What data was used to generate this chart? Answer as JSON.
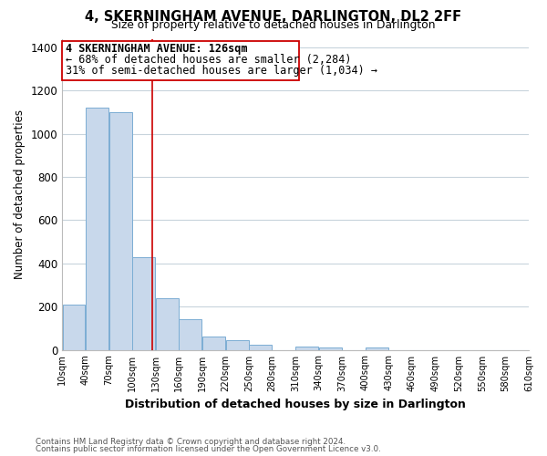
{
  "title": "4, SKERNINGHAM AVENUE, DARLINGTON, DL2 2FF",
  "subtitle": "Size of property relative to detached houses in Darlington",
  "xlabel": "Distribution of detached houses by size in Darlington",
  "ylabel": "Number of detached properties",
  "bar_color": "#c8d8eb",
  "bar_edge_color": "#7badd4",
  "marker_line_color": "#cc0000",
  "background_color": "#ffffff",
  "grid_color": "#c8d4dc",
  "bins_left": [
    10,
    40,
    70,
    100,
    130,
    160,
    190,
    220,
    250,
    280,
    310,
    340,
    370,
    400,
    430,
    460,
    490,
    520,
    550,
    580
  ],
  "bin_width": 30,
  "counts": [
    210,
    1120,
    1100,
    430,
    240,
    140,
    60,
    45,
    25,
    0,
    15,
    10,
    0,
    10,
    0,
    0,
    0,
    0,
    0,
    0
  ],
  "marker_value": 126,
  "xlim_left": 10,
  "xlim_right": 610,
  "ylim": [
    0,
    1440
  ],
  "yticks": [
    0,
    200,
    400,
    600,
    800,
    1000,
    1200,
    1400
  ],
  "annotation_title": "4 SKERNINGHAM AVENUE: 126sqm",
  "annotation_line1": "← 68% of detached houses are smaller (2,284)",
  "annotation_line2": "31% of semi-detached houses are larger (1,034) →",
  "footnote1": "Contains HM Land Registry data © Crown copyright and database right 2024.",
  "footnote2": "Contains public sector information licensed under the Open Government Licence v3.0.",
  "tick_labels": [
    "10sqm",
    "40sqm",
    "70sqm",
    "100sqm",
    "130sqm",
    "160sqm",
    "190sqm",
    "220sqm",
    "250sqm",
    "280sqm",
    "310sqm",
    "340sqm",
    "370sqm",
    "400sqm",
    "430sqm",
    "460sqm",
    "490sqm",
    "520sqm",
    "550sqm",
    "580sqm",
    "610sqm"
  ],
  "tick_positions": [
    10,
    40,
    70,
    100,
    130,
    160,
    190,
    220,
    250,
    280,
    310,
    340,
    370,
    400,
    430,
    460,
    490,
    520,
    550,
    580,
    610
  ]
}
